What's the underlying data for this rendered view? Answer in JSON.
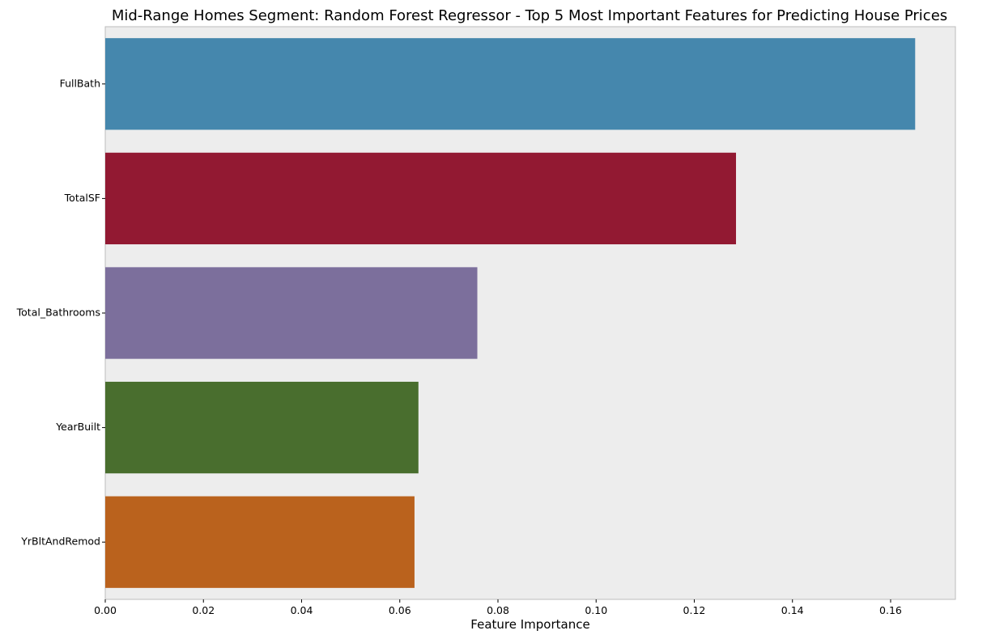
{
  "chart_data": {
    "type": "bar",
    "orientation": "horizontal",
    "title": "Mid-Range Homes Segment: Random Forest Regressor - Top 5 Most Important Features for Predicting House Prices",
    "xlabel": "Feature Importance",
    "ylabel": "",
    "categories": [
      "FullBath",
      "TotalSF",
      "Total_Bathrooms",
      "YearBuilt",
      "YrBltAndRemod"
    ],
    "values": [
      0.165,
      0.1285,
      0.0758,
      0.0638,
      0.063
    ],
    "colors": [
      "#4587ad",
      "#921932",
      "#7c6f9c",
      "#496e2e",
      "#ba621d"
    ],
    "xlim": [
      0,
      0.1732
    ],
    "xticks": [
      0.0,
      0.02,
      0.04,
      0.06,
      0.08,
      0.1,
      0.12,
      0.14,
      0.16
    ],
    "xtick_labels": [
      "0.00",
      "0.02",
      "0.04",
      "0.06",
      "0.08",
      "0.10",
      "0.12",
      "0.14",
      "0.16"
    ],
    "grid": false,
    "legend": "none",
    "background": "#ededed"
  }
}
